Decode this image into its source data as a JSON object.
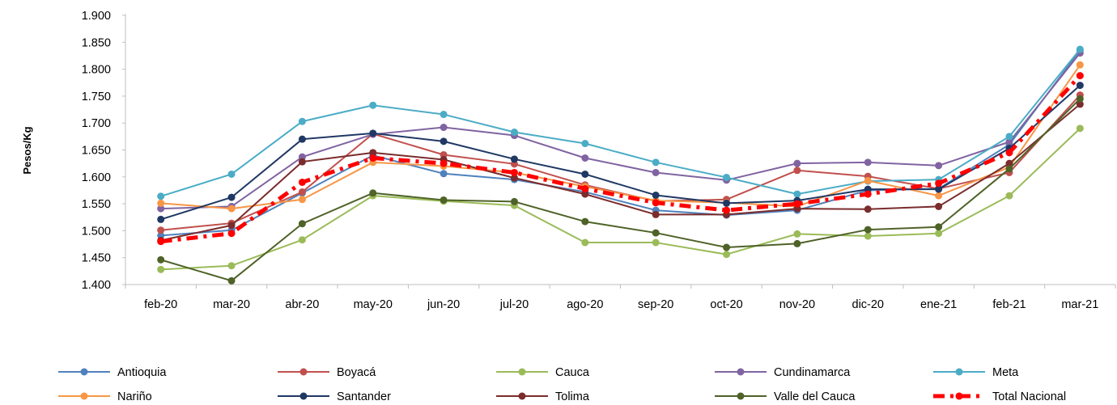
{
  "chart_data": {
    "type": "line",
    "title": "",
    "xlabel": "",
    "ylabel": "Pesos/Kg",
    "ylim": [
      1400,
      1900
    ],
    "ytick_step": 50,
    "ytick_labels": [
      "1.400",
      "1.450",
      "1.500",
      "1.550",
      "1.600",
      "1.650",
      "1.700",
      "1.750",
      "1.800",
      "1.850",
      "1.900"
    ],
    "grid": false,
    "legend_position": "bottom",
    "categories": [
      "feb-20",
      "mar-20",
      "abr-20",
      "may-20",
      "jun-20",
      "jul-20",
      "ago-20",
      "sep-20",
      "oct-20",
      "nov-20",
      "dic-20",
      "ene-21",
      "feb-21",
      "mar-21"
    ],
    "series": [
      {
        "name": "Antioquia",
        "color": "#4f81bd",
        "values": [
          1491,
          1501,
          1570,
          1640,
          1606,
          1595,
          1572,
          1538,
          1529,
          1538,
          1575,
          1578,
          1660,
          1835
        ]
      },
      {
        "name": "Boyacá",
        "color": "#c0504d",
        "values": [
          1501,
          1514,
          1572,
          1680,
          1641,
          1624,
          1585,
          1555,
          1558,
          1612,
          1601,
          1578,
          1608,
          1752
        ]
      },
      {
        "name": "Cauca",
        "color": "#9bbb59",
        "values": [
          1428,
          1435,
          1483,
          1565,
          1555,
          1547,
          1478,
          1478,
          1456,
          1494,
          1490,
          1495,
          1565,
          1690
        ]
      },
      {
        "name": "Cundinamarca",
        "color": "#8064a2",
        "values": [
          1541,
          1545,
          1637,
          1679,
          1692,
          1677,
          1635,
          1608,
          1594,
          1625,
          1627,
          1621,
          1665,
          1830
        ]
      },
      {
        "name": "Meta",
        "color": "#4bacc6",
        "values": [
          1564,
          1605,
          1703,
          1733,
          1716,
          1683,
          1662,
          1627,
          1599,
          1568,
          1592,
          1595,
          1675,
          1837
        ]
      },
      {
        "name": "Nariño",
        "color": "#f79646",
        "values": [
          1551,
          1541,
          1558,
          1627,
          1620,
          1608,
          1582,
          1556,
          1552,
          1545,
          1593,
          1565,
          1618,
          1808
        ]
      },
      {
        "name": "Santander",
        "color": "#1f3864",
        "values": [
          1521,
          1562,
          1670,
          1681,
          1666,
          1633,
          1605,
          1566,
          1551,
          1556,
          1577,
          1577,
          1653,
          1770
        ]
      },
      {
        "name": "Tolima",
        "color": "#7b2c2c",
        "values": [
          1482,
          1510,
          1628,
          1645,
          1632,
          1598,
          1568,
          1530,
          1530,
          1541,
          1540,
          1545,
          1625,
          1735
        ]
      },
      {
        "name": "Valle del Cauca",
        "color": "#4f6228",
        "values": [
          1446,
          1407,
          1513,
          1570,
          1557,
          1554,
          1517,
          1496,
          1469,
          1476,
          1502,
          1507,
          1615,
          1745
        ]
      },
      {
        "name": "Total Nacional",
        "color": "#ff0000",
        "dashed": true,
        "values": [
          1480,
          1495,
          1590,
          1635,
          1625,
          1608,
          1578,
          1552,
          1538,
          1550,
          1568,
          1588,
          1645,
          1788
        ]
      }
    ]
  }
}
